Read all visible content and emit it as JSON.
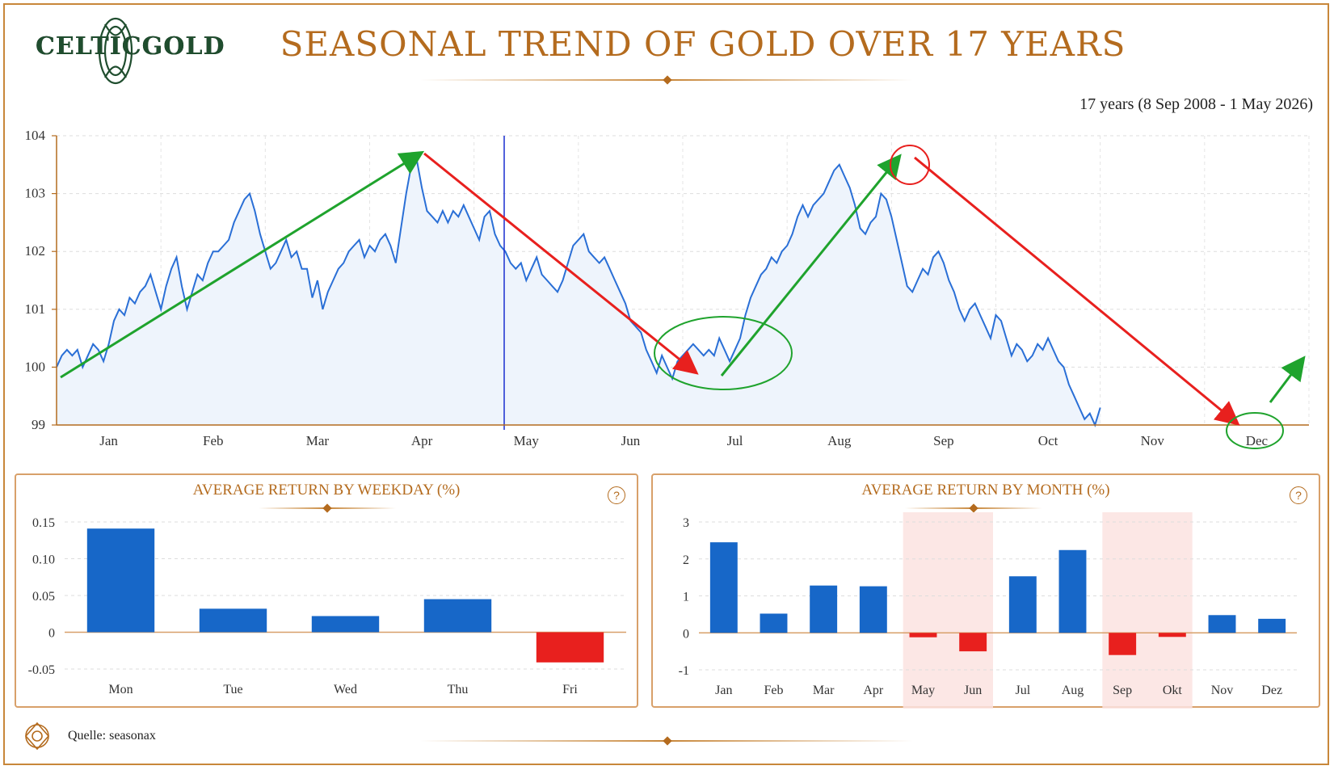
{
  "brand": {
    "name": "CELTICGOLD"
  },
  "title": "SEASONAL TREND OF GOLD OVER 17 YEARS",
  "subtitle": "17 years (8 Sep 2008 - 1 May 2026)",
  "source": "Quelle: seasonax",
  "colors": {
    "accent": "#b46b1e",
    "line": "#2a6fd6",
    "positive": "#1767c8",
    "negative": "#e8201e",
    "arrow_up": "#1fa32d",
    "arrow_down": "#e8201e"
  },
  "chart_data": [
    {
      "type": "line",
      "y_ticks": [
        "104",
        "103",
        "102",
        "101",
        "100",
        "99"
      ],
      "x_ticks": [
        "Jan",
        "Feb",
        "Mar",
        "Apr",
        "May",
        "Jun",
        "Jul",
        "Aug",
        "Sep",
        "Oct",
        "Nov",
        "Dec"
      ],
      "ylim": [
        99,
        104
      ],
      "xlim": [
        0,
        12
      ],
      "series": [
        {
          "values": [
            [
              0,
              100.0
            ],
            [
              0.05,
              100.2
            ],
            [
              0.1,
              100.3
            ],
            [
              0.15,
              100.2
            ],
            [
              0.2,
              100.3
            ],
            [
              0.25,
              100.0
            ],
            [
              0.3,
              100.2
            ],
            [
              0.35,
              100.4
            ],
            [
              0.4,
              100.3
            ],
            [
              0.45,
              100.1
            ],
            [
              0.5,
              100.4
            ],
            [
              0.55,
              100.8
            ],
            [
              0.6,
              101.0
            ],
            [
              0.65,
              100.9
            ],
            [
              0.7,
              101.2
            ],
            [
              0.75,
              101.1
            ],
            [
              0.8,
              101.3
            ],
            [
              0.85,
              101.4
            ],
            [
              0.9,
              101.6
            ],
            [
              0.95,
              101.3
            ],
            [
              1.0,
              101.0
            ],
            [
              1.05,
              101.4
            ],
            [
              1.1,
              101.7
            ],
            [
              1.15,
              101.9
            ],
            [
              1.2,
              101.4
            ],
            [
              1.25,
              101.0
            ],
            [
              1.3,
              101.3
            ],
            [
              1.35,
              101.6
            ],
            [
              1.4,
              101.5
            ],
            [
              1.45,
              101.8
            ],
            [
              1.5,
              102.0
            ],
            [
              1.55,
              102.0
            ],
            [
              1.6,
              102.1
            ],
            [
              1.65,
              102.2
            ],
            [
              1.7,
              102.5
            ],
            [
              1.75,
              102.7
            ],
            [
              1.8,
              102.9
            ],
            [
              1.85,
              103.0
            ],
            [
              1.9,
              102.7
            ],
            [
              1.95,
              102.3
            ],
            [
              2.0,
              102.0
            ],
            [
              2.05,
              101.7
            ],
            [
              2.1,
              101.8
            ],
            [
              2.15,
              102.0
            ],
            [
              2.2,
              102.2
            ],
            [
              2.25,
              101.9
            ],
            [
              2.3,
              102.0
            ],
            [
              2.35,
              101.7
            ],
            [
              2.4,
              101.7
            ],
            [
              2.45,
              101.2
            ],
            [
              2.5,
              101.5
            ],
            [
              2.55,
              101.0
            ],
            [
              2.6,
              101.3
            ],
            [
              2.65,
              101.5
            ],
            [
              2.7,
              101.7
            ],
            [
              2.75,
              101.8
            ],
            [
              2.8,
              102.0
            ],
            [
              2.85,
              102.1
            ],
            [
              2.9,
              102.2
            ],
            [
              2.95,
              101.9
            ],
            [
              3.0,
              102.1
            ],
            [
              3.05,
              102.0
            ],
            [
              3.1,
              102.2
            ],
            [
              3.15,
              102.3
            ],
            [
              3.2,
              102.1
            ],
            [
              3.25,
              101.8
            ],
            [
              3.3,
              102.4
            ],
            [
              3.35,
              103.0
            ],
            [
              3.4,
              103.5
            ],
            [
              3.45,
              103.6
            ],
            [
              3.5,
              103.1
            ],
            [
              3.55,
              102.7
            ],
            [
              3.6,
              102.6
            ],
            [
              3.65,
              102.5
            ],
            [
              3.7,
              102.7
            ],
            [
              3.75,
              102.5
            ],
            [
              3.8,
              102.7
            ],
            [
              3.85,
              102.6
            ],
            [
              3.9,
              102.8
            ],
            [
              3.95,
              102.6
            ],
            [
              4.0,
              102.4
            ],
            [
              4.05,
              102.2
            ],
            [
              4.1,
              102.6
            ],
            [
              4.15,
              102.7
            ],
            [
              4.2,
              102.3
            ],
            [
              4.25,
              102.1
            ],
            [
              4.3,
              102.0
            ],
            [
              4.35,
              101.8
            ],
            [
              4.4,
              101.7
            ],
            [
              4.45,
              101.8
            ],
            [
              4.5,
              101.5
            ],
            [
              4.55,
              101.7
            ],
            [
              4.6,
              101.9
            ],
            [
              4.65,
              101.6
            ],
            [
              4.7,
              101.5
            ],
            [
              4.75,
              101.4
            ],
            [
              4.8,
              101.3
            ],
            [
              4.85,
              101.5
            ],
            [
              4.9,
              101.8
            ],
            [
              4.95,
              102.1
            ],
            [
              5.0,
              102.2
            ],
            [
              5.05,
              102.3
            ],
            [
              5.1,
              102.0
            ],
            [
              5.15,
              101.9
            ],
            [
              5.2,
              101.8
            ],
            [
              5.25,
              101.9
            ],
            [
              5.3,
              101.7
            ],
            [
              5.35,
              101.5
            ],
            [
              5.4,
              101.3
            ],
            [
              5.45,
              101.1
            ],
            [
              5.5,
              100.8
            ],
            [
              5.55,
              100.7
            ],
            [
              5.6,
              100.6
            ],
            [
              5.65,
              100.3
            ],
            [
              5.7,
              100.1
            ],
            [
              5.75,
              99.9
            ],
            [
              5.8,
              100.2
            ],
            [
              5.85,
              100.0
            ],
            [
              5.9,
              99.8
            ],
            [
              5.95,
              100.1
            ],
            [
              6.0,
              100.2
            ],
            [
              6.05,
              100.3
            ],
            [
              6.1,
              100.4
            ],
            [
              6.15,
              100.3
            ],
            [
              6.2,
              100.2
            ],
            [
              6.25,
              100.3
            ],
            [
              6.3,
              100.2
            ],
            [
              6.35,
              100.5
            ],
            [
              6.4,
              100.3
            ],
            [
              6.45,
              100.1
            ],
            [
              6.5,
              100.3
            ],
            [
              6.55,
              100.5
            ],
            [
              6.6,
              100.9
            ],
            [
              6.65,
              101.2
            ],
            [
              6.7,
              101.4
            ],
            [
              6.75,
              101.6
            ],
            [
              6.8,
              101.7
            ],
            [
              6.85,
              101.9
            ],
            [
              6.9,
              101.8
            ],
            [
              6.95,
              102.0
            ],
            [
              7.0,
              102.1
            ],
            [
              7.05,
              102.3
            ],
            [
              7.1,
              102.6
            ],
            [
              7.15,
              102.8
            ],
            [
              7.2,
              102.6
            ],
            [
              7.25,
              102.8
            ],
            [
              7.3,
              102.9
            ],
            [
              7.35,
              103.0
            ],
            [
              7.4,
              103.2
            ],
            [
              7.45,
              103.4
            ],
            [
              7.5,
              103.5
            ],
            [
              7.55,
              103.3
            ],
            [
              7.6,
              103.1
            ],
            [
              7.65,
              102.8
            ],
            [
              7.7,
              102.4
            ],
            [
              7.75,
              102.3
            ],
            [
              7.8,
              102.5
            ],
            [
              7.85,
              102.6
            ],
            [
              7.9,
              103.0
            ],
            [
              7.95,
              102.9
            ],
            [
              8.0,
              102.6
            ],
            [
              8.05,
              102.2
            ],
            [
              8.1,
              101.8
            ],
            [
              8.15,
              101.4
            ],
            [
              8.2,
              101.3
            ],
            [
              8.25,
              101.5
            ],
            [
              8.3,
              101.7
            ],
            [
              8.35,
              101.6
            ],
            [
              8.4,
              101.9
            ],
            [
              8.45,
              102.0
            ],
            [
              8.5,
              101.8
            ],
            [
              8.55,
              101.5
            ],
            [
              8.6,
              101.3
            ],
            [
              8.65,
              101.0
            ],
            [
              8.7,
              100.8
            ],
            [
              8.75,
              101.0
            ],
            [
              8.8,
              101.1
            ],
            [
              8.85,
              100.9
            ],
            [
              8.9,
              100.7
            ],
            [
              8.95,
              100.5
            ],
            [
              9.0,
              100.9
            ],
            [
              9.05,
              100.8
            ],
            [
              9.1,
              100.5
            ],
            [
              9.15,
              100.2
            ],
            [
              9.2,
              100.4
            ],
            [
              9.25,
              100.3
            ],
            [
              9.3,
              100.1
            ],
            [
              9.35,
              100.2
            ],
            [
              9.4,
              100.4
            ],
            [
              9.45,
              100.3
            ],
            [
              9.5,
              100.5
            ],
            [
              9.55,
              100.3
            ],
            [
              9.6,
              100.1
            ],
            [
              9.65,
              100.0
            ],
            [
              9.7,
              99.7
            ],
            [
              9.75,
              99.5
            ],
            [
              9.8,
              99.3
            ],
            [
              9.85,
              99.1
            ],
            [
              9.9,
              99.2
            ],
            [
              9.95,
              99.0
            ],
            [
              10.0,
              99.3
            ]
          ]
        }
      ]
    },
    {
      "type": "bar",
      "title": "AVERAGE RETURN BY WEEKDAY (%)",
      "categories": [
        "Mon",
        "Tue",
        "Wed",
        "Thu",
        "Fri"
      ],
      "values": [
        0.141,
        0.032,
        0.022,
        0.045,
        -0.041
      ],
      "y_ticks": [
        "0.15",
        "0.10",
        "0.05",
        "0",
        "-0.05"
      ],
      "ylim": [
        -0.05,
        0.15
      ]
    },
    {
      "type": "bar",
      "title": "AVERAGE RETURN BY MONTH (%)",
      "categories": [
        "Jan",
        "Feb",
        "Mar",
        "Apr",
        "May",
        "Jun",
        "Jul",
        "Aug",
        "Sep",
        "Okt",
        "Nov",
        "Dez"
      ],
      "values": [
        2.45,
        0.52,
        1.28,
        1.26,
        -0.12,
        -0.5,
        1.53,
        2.24,
        -0.6,
        -0.11,
        0.48,
        0.38
      ],
      "y_ticks": [
        "3",
        "2",
        "1",
        "0",
        "-1"
      ],
      "ylim": [
        -1,
        3
      ],
      "highlighted_months": [
        "May",
        "Jun",
        "Sep",
        "Okt"
      ]
    }
  ]
}
